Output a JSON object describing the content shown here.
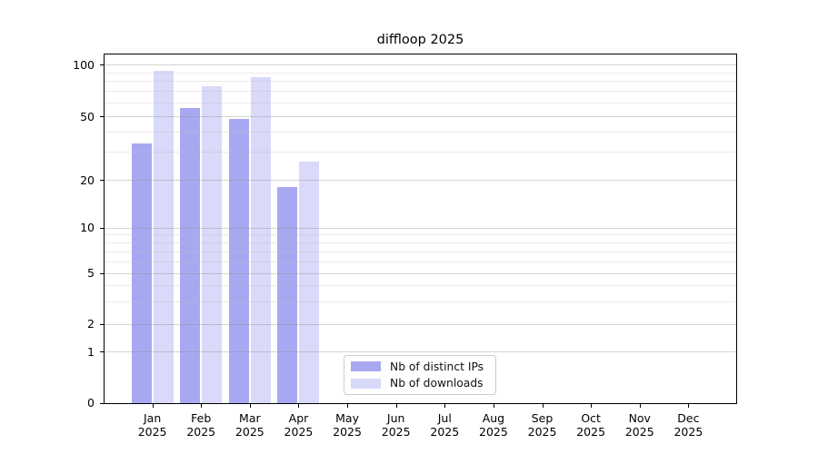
{
  "chart_data": {
    "type": "bar",
    "title": "diffloop 2025",
    "categories": [
      "Jan",
      "Feb",
      "Mar",
      "Apr",
      "May",
      "Jun",
      "Jul",
      "Aug",
      "Sep",
      "Oct",
      "Nov",
      "Dec"
    ],
    "x_year_label": "2025",
    "series": [
      {
        "name": "Nb of distinct IPs",
        "color": "#a8a8f2",
        "values": [
          34,
          56,
          48,
          18,
          null,
          null,
          null,
          null,
          null,
          null,
          null,
          null
        ]
      },
      {
        "name": "Nb of downloads",
        "color": "#d9d9f9",
        "values": [
          92,
          75,
          84,
          26,
          null,
          null,
          null,
          null,
          null,
          null,
          null,
          null
        ]
      }
    ],
    "xlabel": "",
    "ylabel": "",
    "y_axis": {
      "scale": "log-like (linear segment between 0 and 1)",
      "ticks": [
        0,
        1,
        2,
        5,
        10,
        20,
        50,
        100
      ],
      "minor_ticks": [
        3,
        4,
        6,
        7,
        8,
        9,
        30,
        40,
        60,
        70,
        80,
        90
      ],
      "ylim": [
        0,
        110
      ]
    },
    "grid": true,
    "legend_position": "bottom-center",
    "background_color": "#ffffff",
    "grid_major_color": "#d2d2d2",
    "grid_minor_color": "#eaeaea"
  }
}
